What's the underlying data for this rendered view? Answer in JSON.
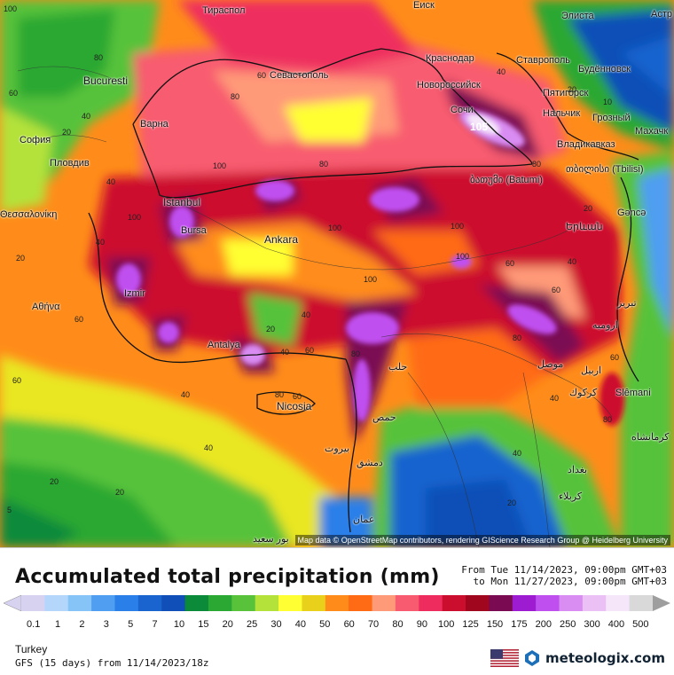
{
  "map": {
    "cities": [
      {
        "name": "Тираспол"
      },
      {
        "name": "Bucuresti"
      },
      {
        "name": "Севастополь"
      },
      {
        "name": "Краснодар"
      },
      {
        "name": "Ставрополь"
      },
      {
        "name": "Элиста"
      },
      {
        "name": "Астр"
      },
      {
        "name": "Будённовск"
      },
      {
        "name": "Новороссийск"
      },
      {
        "name": "Пятигорск"
      },
      {
        "name": "Нальчик"
      },
      {
        "name": "Грозный"
      },
      {
        "name": "Махачк"
      },
      {
        "name": "Сочи"
      },
      {
        "name": "Владикавказ"
      },
      {
        "name": "София"
      },
      {
        "name": "Варна"
      },
      {
        "name": "Пловдив"
      },
      {
        "name": "ბათუმი (Batumi)"
      },
      {
        "name": "თბილისი (Tbilisi)"
      },
      {
        "name": "Istanbul"
      },
      {
        "name": "Gəncə"
      },
      {
        "name": "Θεσσαλονίκη"
      },
      {
        "name": "Bursa"
      },
      {
        "name": "Ankara"
      },
      {
        "name": "Երևան"
      },
      {
        "name": "Izmir"
      },
      {
        "name": "Αθήνα"
      },
      {
        "name": "Antalya"
      },
      {
        "name": "حلب"
      },
      {
        "name": "Nicosia"
      },
      {
        "name": "Slêmani"
      },
      {
        "name": "حمص"
      },
      {
        "name": "بيروت"
      },
      {
        "name": "دمشق"
      },
      {
        "name": "بغداد"
      },
      {
        "name": "عمان"
      },
      {
        "name": "کرمانشاه"
      },
      {
        "name": "بور سعيد"
      },
      {
        "name": "تبریز"
      },
      {
        "name": "ارومیه"
      },
      {
        "name": "موصل"
      },
      {
        "name": "اربیل"
      },
      {
        "name": "كركوك"
      },
      {
        "name": "كربلاء"
      },
      {
        "name": "Еиск"
      }
    ],
    "contour_labels": [
      "100",
      "80",
      "60",
      "40",
      "20",
      "40",
      "60",
      "80",
      "100",
      "40",
      "20",
      "10",
      "20",
      "40",
      "60",
      "80",
      "100",
      "40",
      "20",
      "5",
      "20",
      "40",
      "60",
      "20",
      "40",
      "60",
      "80",
      "100",
      "80",
      "60",
      "40",
      "100",
      "80",
      "60",
      "40",
      "20",
      "100",
      "80",
      "40",
      "20",
      "100",
      "60",
      "40",
      "80",
      "60"
    ],
    "peak_label": "105",
    "attribution": "Map data © OpenStreetMap contributors, rendering GIScience Research Group @ Heidelberg University"
  },
  "legend": {
    "title": "Accumulated total precipitation (mm)",
    "from": "From Tue 11/14/2023, 09:00pm GMT+03",
    "to": "to Mon 11/27/2023, 09:00pm GMT+03",
    "ticks": [
      "0.1",
      "1",
      "2",
      "3",
      "5",
      "7",
      "10",
      "15",
      "20",
      "25",
      "30",
      "40",
      "50",
      "60",
      "70",
      "80",
      "90",
      "100",
      "125",
      "150",
      "175",
      "200",
      "250",
      "300",
      "400",
      "500"
    ],
    "colors": [
      "#d7d2f0",
      "#b5d6fb",
      "#86c4f8",
      "#4f9ef2",
      "#2a7fe8",
      "#1964cf",
      "#0f4fb7",
      "#0b8a3a",
      "#2aa833",
      "#57c23a",
      "#b4e23a",
      "#ffff33",
      "#e9d11b",
      "#ff8c1a",
      "#ff6a14",
      "#ff9a78",
      "#f85b70",
      "#ee2d5e",
      "#cc0e2e",
      "#a0061e",
      "#7a0a52",
      "#9d1bd0",
      "#c04ff0",
      "#d98cf2",
      "#eac0f5",
      "#f6e6fa",
      "#d9d9d9"
    ]
  },
  "meta": {
    "region": "Turkey",
    "model": "GFS (15 days) from  11/14/2023/18z",
    "brand": "meteologix.com"
  }
}
